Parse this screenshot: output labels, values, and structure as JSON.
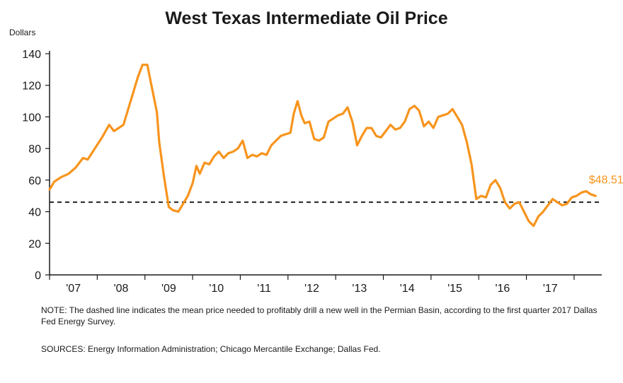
{
  "colors": {
    "series": "#f7941d",
    "dashed": "#222222",
    "axis": "#1a1a1a"
  },
  "notes": {
    "note": "NOTE: The dashed line indicates the mean price needed to profitably drill a new well in the Permian Basin, according to the first quarter 2017 Dallas Fed Energy Survey.",
    "sources": "SOURCES: Energy Information Administration; Chicago Mercantile Exchange; Dallas Fed."
  },
  "chart_data": {
    "type": "line",
    "title": "West Texas Intermediate Oil Price",
    "ylabel": "Dollars",
    "xlabel": "",
    "ylim": [
      0,
      140
    ],
    "yticks": [
      0,
      20,
      40,
      60,
      80,
      100,
      120,
      140
    ],
    "xlim": [
      2006.0,
      2017.58
    ],
    "categories": [
      "'07",
      "'08",
      "'09",
      "'10",
      "'11",
      "'12",
      "'13",
      "'14",
      "'15",
      "'16",
      "'17"
    ],
    "grid": false,
    "reference_line": {
      "value": 46,
      "style": "dashed"
    },
    "end_label": "$48.51",
    "series": [
      {
        "x": [
          2006.0,
          2006.1,
          2006.25,
          2006.4,
          2006.55,
          2006.7,
          2006.8,
          2006.95,
          2007.1,
          2007.25,
          2007.35,
          2007.45,
          2007.55,
          2007.65,
          2007.75,
          2007.85,
          2007.95,
          2008.05,
          2008.15,
          2008.25,
          2008.3,
          2008.4,
          2008.5,
          2008.58,
          2008.7,
          2008.8,
          2008.9,
          2009.0,
          2009.08,
          2009.15,
          2009.25,
          2009.35,
          2009.45,
          2009.55,
          2009.65,
          2009.75,
          2009.85,
          2009.95,
          2010.05,
          2010.15,
          2010.25,
          2010.35,
          2010.45,
          2010.55,
          2010.65,
          2010.75,
          2010.85,
          2010.95,
          2011.05,
          2011.12,
          2011.2,
          2011.28,
          2011.35,
          2011.45,
          2011.55,
          2011.65,
          2011.75,
          2011.85,
          2011.95,
          2012.05,
          2012.15,
          2012.25,
          2012.35,
          2012.45,
          2012.55,
          2012.65,
          2012.75,
          2012.85,
          2012.95,
          2013.05,
          2013.15,
          2013.25,
          2013.35,
          2013.45,
          2013.55,
          2013.65,
          2013.75,
          2013.85,
          2013.95,
          2014.05,
          2014.15,
          2014.25,
          2014.35,
          2014.45,
          2014.55,
          2014.65,
          2014.75,
          2014.85,
          2014.95,
          2015.05,
          2015.15,
          2015.25,
          2015.35,
          2015.45,
          2015.55,
          2015.65,
          2015.75,
          2015.85,
          2015.95,
          2016.05,
          2016.15,
          2016.25,
          2016.35,
          2016.45,
          2016.55,
          2016.65,
          2016.75,
          2016.85,
          2016.95,
          2017.05,
          2017.15,
          2017.25,
          2017.35,
          2017.45
        ],
        "values": [
          54,
          59,
          62,
          64,
          68,
          74,
          73,
          80,
          87,
          95,
          91,
          93,
          95,
          105,
          115,
          125,
          133,
          133,
          118,
          103,
          84,
          62,
          43,
          41,
          40,
          45,
          50,
          58,
          69,
          64,
          71,
          70,
          75,
          78,
          74,
          77,
          78,
          80,
          85,
          74,
          76,
          75,
          77,
          76,
          82,
          85,
          88,
          89,
          90,
          102,
          110,
          101,
          96,
          97,
          86,
          85,
          87,
          97,
          99,
          101,
          102,
          106,
          97,
          82,
          88,
          93,
          93,
          88,
          87,
          91,
          95,
          92,
          93,
          97,
          105,
          107,
          104,
          94,
          97,
          93,
          100,
          101,
          102,
          105,
          100,
          95,
          84,
          70,
          48,
          50,
          49,
          57,
          60,
          55,
          46,
          42,
          45,
          46,
          40,
          34,
          31,
          37,
          40,
          44,
          48,
          46,
          44,
          45,
          49,
          50,
          52,
          53,
          51,
          50
        ]
      }
    ]
  }
}
